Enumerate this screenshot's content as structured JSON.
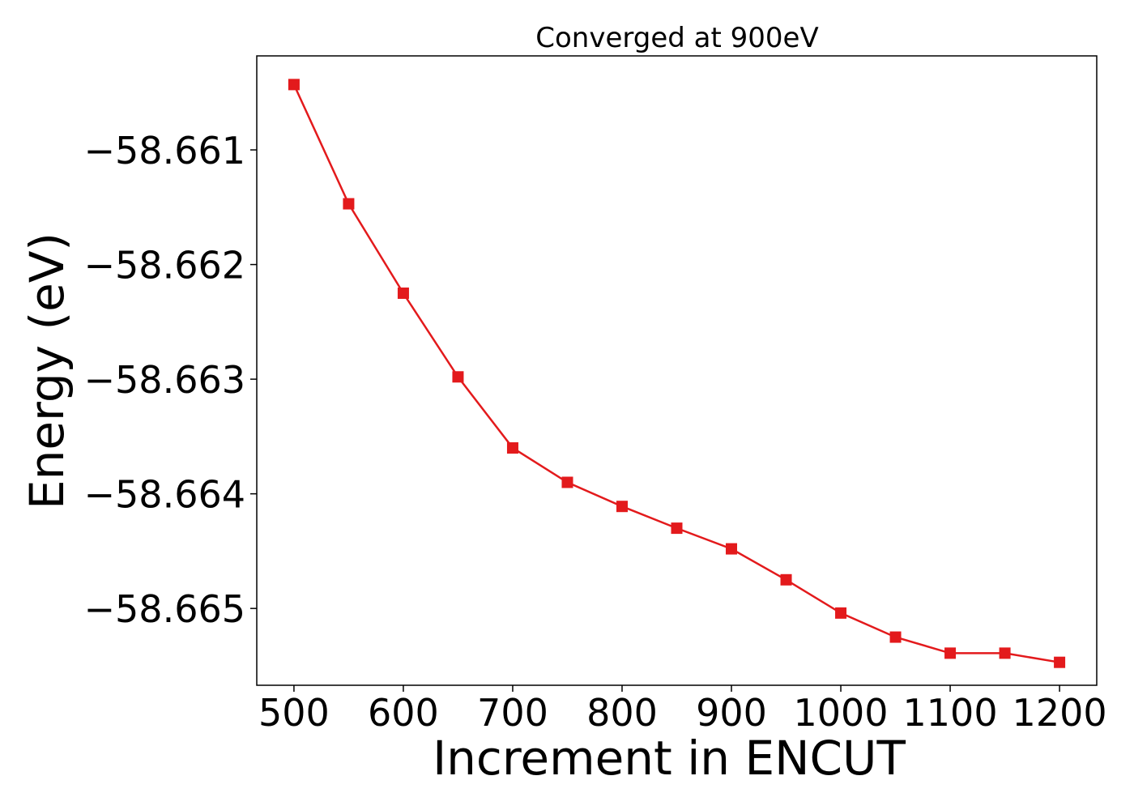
{
  "chart_data": {
    "type": "line",
    "title": "Converged at 900eV",
    "xlabel": "Increment in ENCUT",
    "ylabel": "Energy (eV)",
    "x": [
      500,
      550,
      600,
      650,
      700,
      750,
      800,
      850,
      900,
      950,
      1000,
      1050,
      1100,
      1150,
      1200
    ],
    "series": [
      {
        "values": [
          -58.66043,
          -58.66147,
          -58.66225,
          -58.66298,
          -58.6636,
          -58.6639,
          -58.66411,
          -58.6643,
          -58.66448,
          -58.66475,
          -58.66504,
          -58.66525,
          -58.66539,
          -58.66539,
          -58.66547
        ],
        "color": "#e31a1c",
        "marker": "square"
      }
    ],
    "xticks": [
      500,
      600,
      700,
      800,
      900,
      1000,
      1100,
      1200
    ],
    "xtick_labels": [
      "500",
      "600",
      "700",
      "800",
      "900",
      "1000",
      "1100",
      "1200"
    ],
    "yticks": [
      -58.661,
      -58.662,
      -58.663,
      -58.664,
      -58.665
    ],
    "ytick_labels": [
      "−58.661",
      "−58.662",
      "−58.663",
      "−58.664",
      "−58.665"
    ],
    "xlim": [
      466,
      1234
    ],
    "ylim": [
      -58.66567,
      -58.66018
    ],
    "grid": false,
    "legend": "none"
  }
}
